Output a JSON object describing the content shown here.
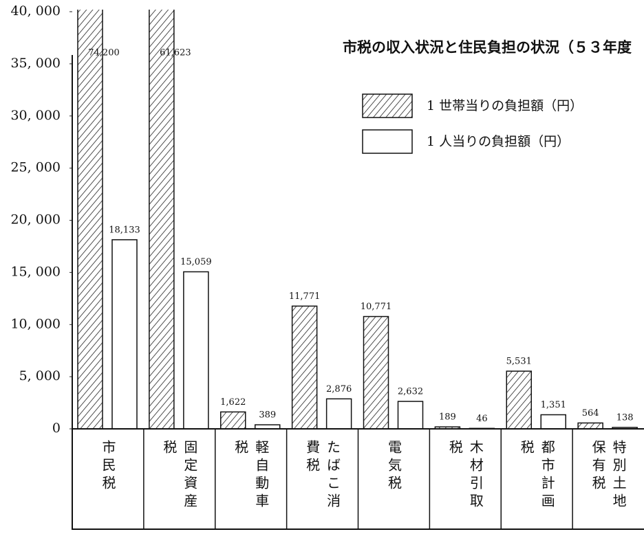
{
  "chart_data": {
    "type": "bar",
    "title": "市税の収入状況と住民負担の状況（５３年度",
    "categories": [
      "市民税",
      "固定資産税",
      "軽自動車税",
      "たばこ消費税",
      "電気税",
      "木材引取税",
      "都市計画税",
      "特別土地保有税"
    ],
    "series": [
      {
        "name": "1 世帯当りの負担額（円）",
        "color": "hatch",
        "values": [
          74200,
          61623,
          1622,
          11771,
          10771,
          189,
          5531,
          564
        ],
        "value_labels": [
          "74,200",
          "61,623",
          "1,622",
          "11,771",
          "10,771",
          "189",
          "5,531",
          "564"
        ]
      },
      {
        "name": "1 人当りの負担額（円）",
        "color": "#ffffff",
        "values": [
          18133,
          15059,
          389,
          2876,
          2632,
          46,
          1351,
          138
        ],
        "value_labels": [
          "18,133",
          "15,059",
          "389",
          "2,876",
          "2,632",
          "46",
          "1,351",
          "138"
        ]
      }
    ],
    "ylim": [
      0,
      40000
    ],
    "yticks": [
      0,
      {
        "value": 5000,
        "label": "5, 000"
      },
      {
        "value": 10000,
        "label": "10, 000"
      },
      {
        "value": 15000,
        "label": "15, 000"
      },
      {
        "value": 20000,
        "label": "20, 000"
      },
      {
        "value": 25000,
        "label": "25, 000"
      },
      {
        "value": 30000,
        "label": "30, 000"
      },
      {
        "value": 35000,
        "label": "35, 000"
      },
      {
        "value": 40000,
        "label": "40, 000"
      }
    ],
    "legend": "upper right"
  }
}
